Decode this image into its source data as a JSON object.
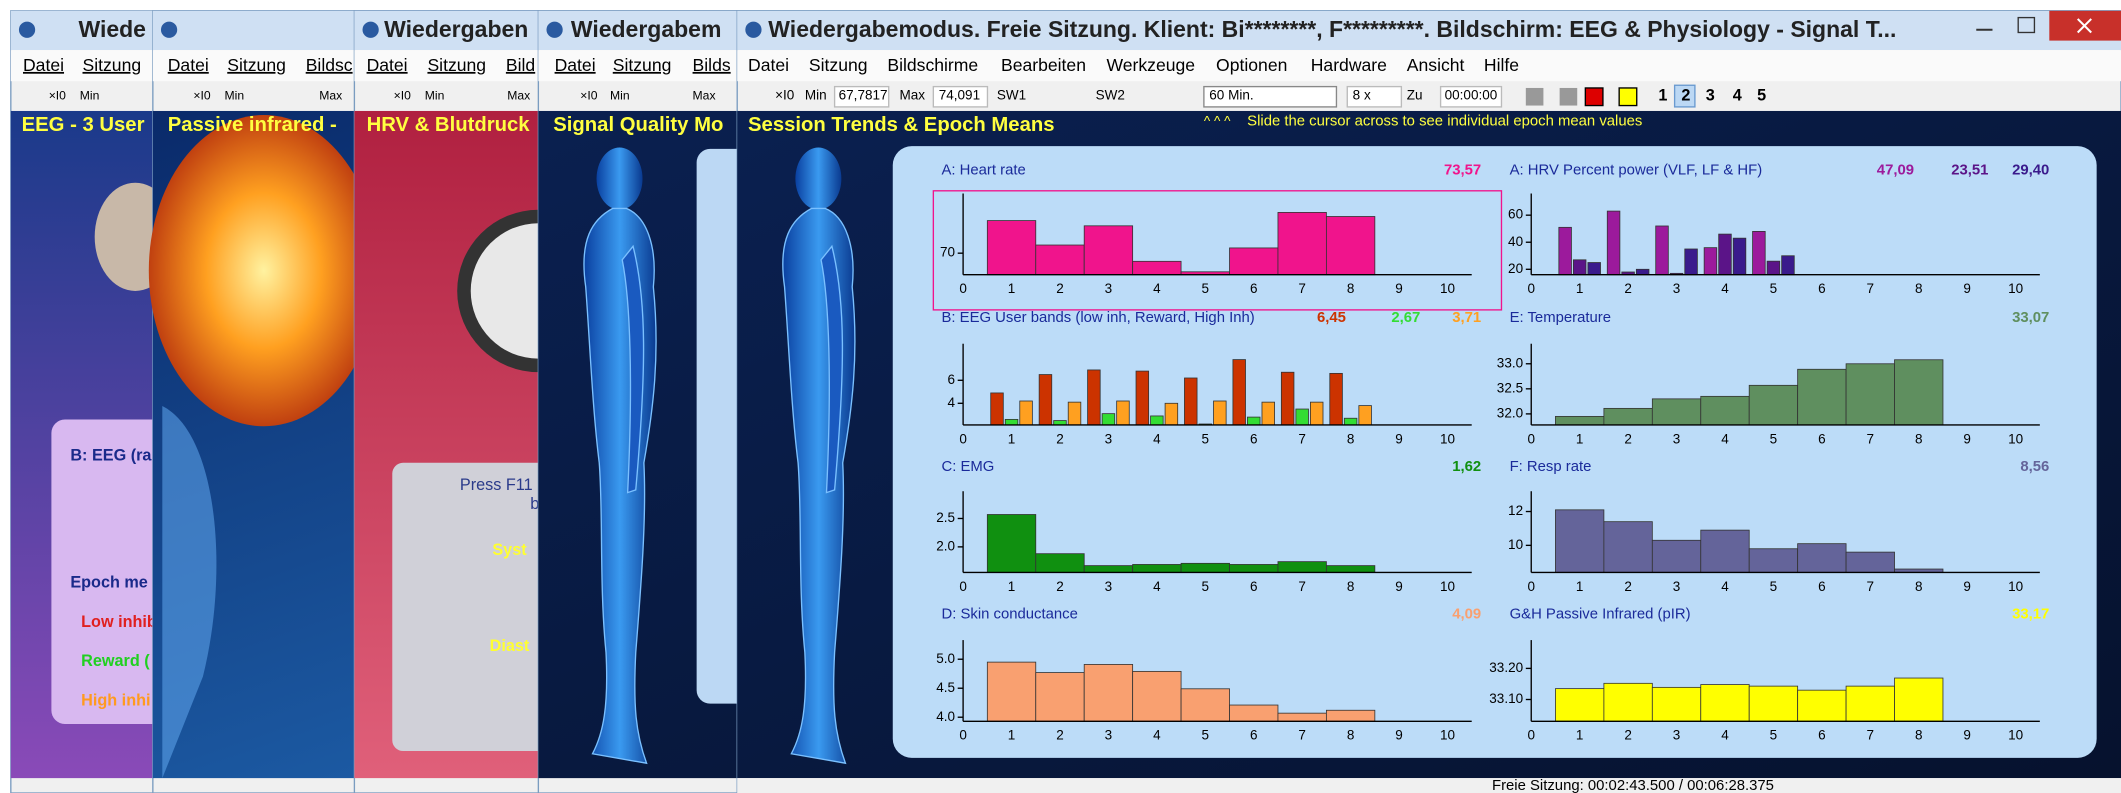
{
  "background_windows": [
    {
      "title": "Wiede",
      "menu": [
        "Datei",
        "Sitzung"
      ],
      "toolbar": [
        "×I0",
        "Min"
      ],
      "screen_title": "EEG - 3 User",
      "texts": [
        "B: EEG (ra",
        "Epoch me",
        "Low inhib",
        "Reward (",
        "High inhi"
      ]
    },
    {
      "menu": [
        "Datei",
        "Sitzung",
        "Bildsc"
      ],
      "toolbar": [
        "×I0",
        "Min",
        "Max"
      ],
      "screen_title": "Passive infrared -",
      "texts": []
    },
    {
      "title": "Wiedergaben",
      "menu": [
        "Datei",
        "Sitzung",
        "Bild"
      ],
      "toolbar": [
        "×I0",
        "Min",
        "Max"
      ],
      "screen_title": "HRV & Blutdruck",
      "texts": [
        "Press F11",
        "b",
        "Syst",
        "Diast"
      ]
    },
    {
      "title": "Wiedergabem",
      "menu": [
        "Datei",
        "Sitzung",
        "Bilds"
      ],
      "toolbar": [
        "×I0",
        "Min",
        "Max"
      ],
      "screen_title": "Signal Quality Mo",
      "texts": []
    }
  ],
  "window": {
    "title": "Wiedergabemodus. Freie Sitzung. Klient: Bi********, F*********. Bildschirm: EEG & Physiology - Signal T...",
    "menu": [
      "Datei",
      "Sitzung",
      "Bildschirme",
      "Bearbeiten",
      "Werkzeuge",
      "Optionen",
      "Hardware",
      "Ansicht",
      "Hilfe"
    ],
    "toolbar": [
      "×I0",
      "Min",
      "67,7817",
      "Max",
      "74,091",
      "SW1",
      "SW2",
      "60 Min.",
      "8 x",
      "Zu",
      "00:00:00",
      "1",
      "2",
      "3",
      "4",
      "5"
    ],
    "screen_title": "Session Trends & Epoch Means",
    "hint_marker": "^ ^ ^",
    "hint": "Slide the cursor across to see individual epoch mean values",
    "status": "Freie Sitzung: 00:02:43.500 / 00:06:28.375"
  },
  "charts": [
    {
      "title": "A: Heart rate",
      "readouts": [
        "73,57"
      ],
      "x": [
        1,
        2,
        3,
        4,
        5,
        6,
        7,
        8
      ],
      "xlim": [
        0,
        10.5
      ],
      "xticks": [
        0,
        1,
        2,
        3,
        4,
        5,
        6,
        7,
        8,
        9,
        10
      ],
      "ylim": [
        66.3,
        80.25
      ],
      "yticks": [
        70
      ],
      "series": [
        {
          "color": "#f0148c",
          "values": [
            75.6,
            71.4,
            74.7,
            68.6,
            66.8,
            70.9,
            77.0,
            76.3
          ]
        }
      ]
    },
    {
      "title": "A: HRV Percent power (VLF, LF & HF)",
      "readouts": [
        "47,09",
        "23,51",
        "29,40"
      ],
      "x": [
        1,
        2,
        3,
        4,
        5
      ],
      "xlim": [
        0,
        10.5
      ],
      "xticks": [
        0,
        1,
        2,
        3,
        4,
        5,
        6,
        7,
        8,
        9,
        10
      ],
      "ylim": [
        16,
        76
      ],
      "yticks": [
        20,
        40,
        60
      ],
      "series": [
        {
          "color": "#9c1a9c",
          "values": [
            51,
            63,
            52,
            36,
            48
          ]
        },
        {
          "color": "#5b1488",
          "values": [
            27,
            18,
            17,
            46,
            26
          ]
        },
        {
          "color": "#3a1a8c",
          "values": [
            25,
            20,
            35,
            43,
            30
          ]
        }
      ]
    },
    {
      "title": "B: EEG User bands (low inh, Reward, High Inh)",
      "readouts": [
        "6,45",
        "2,67",
        "3,71"
      ],
      "x": [
        1,
        2,
        3,
        4,
        5,
        6,
        7,
        8
      ],
      "xlim": [
        0,
        10.5
      ],
      "xticks": [
        0,
        1,
        2,
        3,
        4,
        5,
        6,
        7,
        8,
        9,
        10
      ],
      "ylim": [
        2.12,
        9.18
      ],
      "yticks": [
        4,
        6
      ],
      "series": [
        {
          "color": "#cc3300",
          "values": [
            4.9,
            6.5,
            6.9,
            6.8,
            6.2,
            7.8,
            6.7,
            6.6
          ]
        },
        {
          "color": "#33dd33",
          "values": [
            2.6,
            2.5,
            3.1,
            2.9,
            2.2,
            2.8,
            3.5,
            2.7
          ]
        },
        {
          "color": "#ffa020",
          "values": [
            4.2,
            4.1,
            4.2,
            4.0,
            4.2,
            4.1,
            4.1,
            3.8
          ]
        }
      ]
    },
    {
      "title": "E: Temperature",
      "readouts": [
        "33,07"
      ],
      "x": [
        1,
        2,
        3,
        4,
        5,
        6,
        7,
        8
      ],
      "xlim": [
        0,
        10.5
      ],
      "xticks": [
        0,
        1,
        2,
        3,
        4,
        5,
        6,
        7,
        8,
        9,
        10
      ],
      "ylim": [
        31.78,
        33.4
      ],
      "yticks": [
        {
          "value": 32,
          "label": "32.0"
        },
        32.5,
        {
          "value": 33,
          "label": "33.0"
        }
      ],
      "series": [
        {
          "color": "#5f8f5f",
          "values": [
            31.95,
            32.11,
            32.3,
            32.35,
            32.57,
            32.89,
            33.0,
            33.08
          ]
        }
      ]
    },
    {
      "title": "C: EMG",
      "readouts": [
        "1,62"
      ],
      "x": [
        1,
        2,
        3,
        4,
        5,
        6,
        7,
        8
      ],
      "xlim": [
        0,
        10.5
      ],
      "xticks": [
        0,
        1,
        2,
        3,
        4,
        5,
        6,
        7,
        8,
        9,
        10
      ],
      "ylim": [
        1.55,
        2.98
      ],
      "yticks": [
        {
          "value": 2,
          "label": "2.0"
        },
        2.5
      ],
      "series": [
        {
          "color": "#109010",
          "values": [
            2.57,
            1.88,
            1.67,
            1.69,
            1.71,
            1.69,
            1.74,
            1.67
          ]
        }
      ]
    },
    {
      "title": "F: Resp rate",
      "readouts": [
        "8,56"
      ],
      "x": [
        1,
        2,
        3,
        4,
        5,
        6,
        7,
        8
      ],
      "xlim": [
        0,
        10.5
      ],
      "xticks": [
        0,
        1,
        2,
        3,
        4,
        5,
        6,
        7,
        8,
        9,
        10
      ],
      "ylim": [
        8.4,
        13.2
      ],
      "yticks": [
        10,
        12
      ],
      "series": [
        {
          "color": "#64649a",
          "values": [
            12.1,
            11.4,
            10.3,
            10.9,
            9.8,
            10.1,
            9.6,
            8.6
          ]
        }
      ]
    },
    {
      "title": "D: Skin conductance",
      "readouts": [
        "4,09"
      ],
      "x": [
        1,
        2,
        3,
        4,
        5,
        6,
        7,
        8
      ],
      "xlim": [
        0,
        10.5
      ],
      "xticks": [
        0,
        1,
        2,
        3,
        4,
        5,
        6,
        7,
        8,
        9,
        10
      ],
      "ylim": [
        3.93,
        5.33
      ],
      "yticks": [
        {
          "value": 4,
          "label": "4.0"
        },
        4.5,
        {
          "value": 5,
          "label": "5.0"
        }
      ],
      "series": [
        {
          "color": "#f9a070",
          "values": [
            4.95,
            4.77,
            4.91,
            4.79,
            4.49,
            4.21,
            4.07,
            4.12
          ]
        }
      ]
    },
    {
      "title": "G&H Passive Infrared (pIR)",
      "readouts": [
        "33,17"
      ],
      "x": [
        1,
        2,
        3,
        4,
        5,
        6,
        7,
        8
      ],
      "xlim": [
        0,
        10.5
      ],
      "xticks": [
        0,
        1,
        2,
        3,
        4,
        5,
        6,
        7,
        8,
        9,
        10
      ],
      "ylim": [
        33.03,
        33.291
      ],
      "yticks": [
        {
          "value": 33.1,
          "label": "33.10"
        },
        {
          "value": 33.2,
          "label": "33.20"
        }
      ],
      "series": [
        {
          "color": "#ffff00",
          "values": [
            33.135,
            33.152,
            33.139,
            33.148,
            33.143,
            33.13,
            33.143,
            33.169
          ]
        }
      ]
    }
  ]
}
